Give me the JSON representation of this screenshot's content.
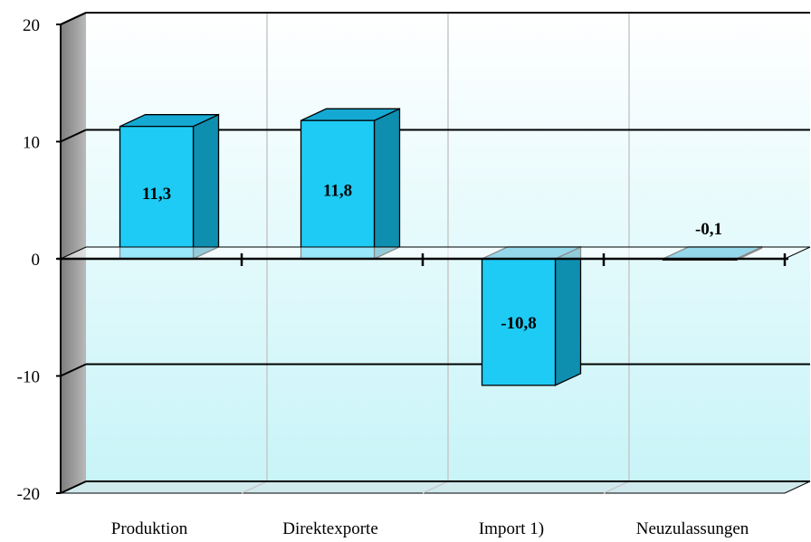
{
  "chart_data": {
    "type": "bar",
    "categories": [
      "Produktion",
      "Direktexporte",
      "Import 1)",
      "Neuzulassungen"
    ],
    "values": [
      11.3,
      11.8,
      -10.8,
      -0.1
    ],
    "data_labels": [
      "11,3",
      "11,8",
      "-10,8",
      "-0,1"
    ],
    "ylim": [
      -20,
      20
    ],
    "yticks": [
      20,
      10,
      0,
      -10,
      -20
    ],
    "ytick_labels": [
      "20",
      "10",
      "0",
      "-10",
      "-20"
    ],
    "grid": true,
    "three_d": true,
    "colors": {
      "bar_front": "#1ecbf5",
      "bar_side": "#0f8fb0",
      "bar_top": "#14a9d2",
      "wall_top": "#ffffff",
      "wall_bottom": "#c8f4f8",
      "side_wall": "#9a9a9a",
      "floor": "#cfe9ec"
    }
  }
}
